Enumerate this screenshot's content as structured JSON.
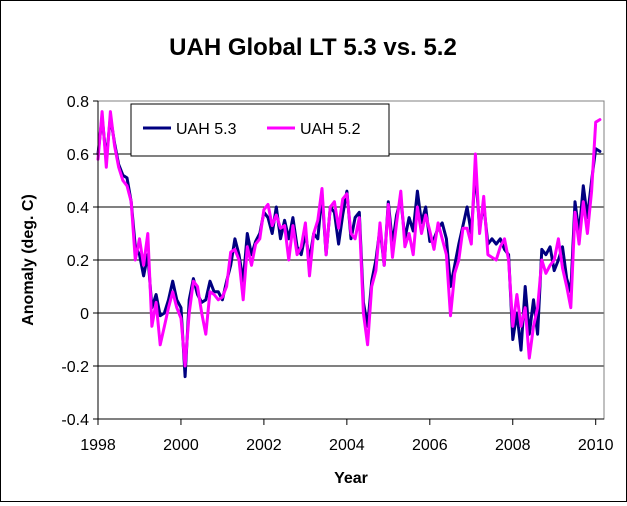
{
  "chart_data": {
    "type": "line",
    "title": "UAH Global LT 5.3 vs. 5.2",
    "xlabel": "Year",
    "ylabel": "Anomaly (deg. C)",
    "xlim": [
      1998,
      2010.2
    ],
    "ylim": [
      -0.4,
      0.8
    ],
    "xticks": [
      1998,
      2000,
      2002,
      2004,
      2006,
      2008,
      2010
    ],
    "yticks": [
      -0.4,
      -0.2,
      0,
      0.2,
      0.4,
      0.6,
      0.8
    ],
    "ytick_labels": [
      "-0.4",
      "-0.2",
      "0",
      "0.2",
      "0.4",
      "0.6",
      "0.8"
    ],
    "grid": "horizontal",
    "legend_position": "top-left",
    "series": [
      {
        "name": "UAH 5.3",
        "color": "#000080",
        "x": [
          1998.0,
          1998.1,
          1998.2,
          1998.3,
          1998.4,
          1998.5,
          1998.6,
          1998.7,
          1998.8,
          1998.9,
          1999.0,
          1999.1,
          1999.2,
          1999.3,
          1999.4,
          1999.5,
          1999.6,
          1999.7,
          1999.8,
          1999.9,
          2000.0,
          2000.1,
          2000.2,
          2000.3,
          2000.4,
          2000.5,
          2000.6,
          2000.7,
          2000.8,
          2000.9,
          2001.0,
          2001.1,
          2001.2,
          2001.3,
          2001.4,
          2001.5,
          2001.6,
          2001.7,
          2001.8,
          2001.9,
          2002.0,
          2002.1,
          2002.2,
          2002.3,
          2002.4,
          2002.5,
          2002.6,
          2002.7,
          2002.8,
          2002.9,
          2003.0,
          2003.1,
          2003.2,
          2003.3,
          2003.4,
          2003.5,
          2003.6,
          2003.7,
          2003.8,
          2003.9,
          2004.0,
          2004.1,
          2004.2,
          2004.3,
          2004.4,
          2004.5,
          2004.6,
          2004.7,
          2004.8,
          2004.9,
          2005.0,
          2005.1,
          2005.2,
          2005.3,
          2005.4,
          2005.5,
          2005.6,
          2005.7,
          2005.8,
          2005.9,
          2006.0,
          2006.1,
          2006.2,
          2006.3,
          2006.4,
          2006.5,
          2006.6,
          2006.7,
          2006.8,
          2006.9,
          2007.0,
          2007.1,
          2007.2,
          2007.3,
          2007.4,
          2007.5,
          2007.6,
          2007.7,
          2007.8,
          2007.9,
          2008.0,
          2008.1,
          2008.2,
          2008.3,
          2008.4,
          2008.5,
          2008.6,
          2008.7,
          2008.8,
          2008.9,
          2009.0,
          2009.1,
          2009.2,
          2009.3,
          2009.4,
          2009.5,
          2009.6,
          2009.7,
          2009.8,
          2009.9,
          2010.0,
          2010.1
        ],
        "values": [
          0.6,
          0.74,
          0.58,
          0.74,
          0.64,
          0.56,
          0.52,
          0.51,
          0.42,
          0.25,
          0.22,
          0.14,
          0.22,
          0.02,
          0.07,
          -0.01,
          0.0,
          0.05,
          0.12,
          0.05,
          0.02,
          -0.24,
          0.05,
          0.13,
          0.07,
          0.04,
          0.05,
          0.12,
          0.08,
          0.08,
          0.05,
          0.12,
          0.18,
          0.28,
          0.22,
          0.12,
          0.3,
          0.22,
          0.27,
          0.3,
          0.38,
          0.36,
          0.3,
          0.4,
          0.28,
          0.35,
          0.28,
          0.36,
          0.25,
          0.22,
          0.3,
          0.2,
          0.3,
          0.28,
          0.45,
          0.22,
          0.4,
          0.38,
          0.26,
          0.37,
          0.46,
          0.28,
          0.36,
          0.38,
          0.04,
          -0.05,
          0.12,
          0.2,
          0.32,
          0.18,
          0.42,
          0.26,
          0.37,
          0.43,
          0.28,
          0.36,
          0.31,
          0.46,
          0.34,
          0.4,
          0.27,
          0.28,
          0.32,
          0.34,
          0.28,
          0.1,
          0.18,
          0.26,
          0.33,
          0.4,
          0.3,
          0.54,
          0.32,
          0.41,
          0.26,
          0.28,
          0.26,
          0.28,
          0.24,
          0.22,
          -0.1,
          0.0,
          -0.14,
          0.1,
          -0.08,
          0.05,
          -0.08,
          0.24,
          0.22,
          0.25,
          0.16,
          0.2,
          0.25,
          0.13,
          0.08,
          0.42,
          0.3,
          0.48,
          0.36,
          0.5,
          0.62,
          0.61
        ]
      },
      {
        "name": "UAH 5.2",
        "color": "#FF00FF",
        "x": [
          1998.0,
          1998.1,
          1998.2,
          1998.3,
          1998.4,
          1998.5,
          1998.6,
          1998.7,
          1998.8,
          1998.9,
          1999.0,
          1999.1,
          1999.2,
          1999.3,
          1999.4,
          1999.5,
          1999.6,
          1999.7,
          1999.8,
          1999.9,
          2000.0,
          2000.1,
          2000.2,
          2000.3,
          2000.4,
          2000.5,
          2000.6,
          2000.7,
          2000.8,
          2000.9,
          2001.0,
          2001.1,
          2001.2,
          2001.3,
          2001.4,
          2001.5,
          2001.6,
          2001.7,
          2001.8,
          2001.9,
          2002.0,
          2002.1,
          2002.2,
          2002.3,
          2002.4,
          2002.5,
          2002.6,
          2002.7,
          2002.8,
          2002.9,
          2003.0,
          2003.1,
          2003.2,
          2003.3,
          2003.4,
          2003.5,
          2003.6,
          2003.7,
          2003.8,
          2003.9,
          2004.0,
          2004.1,
          2004.2,
          2004.3,
          2004.4,
          2004.5,
          2004.6,
          2004.7,
          2004.8,
          2004.9,
          2005.0,
          2005.1,
          2005.2,
          2005.3,
          2005.4,
          2005.5,
          2005.6,
          2005.7,
          2005.8,
          2005.9,
          2006.0,
          2006.1,
          2006.2,
          2006.3,
          2006.4,
          2006.5,
          2006.6,
          2006.7,
          2006.8,
          2006.9,
          2007.0,
          2007.1,
          2007.2,
          2007.3,
          2007.4,
          2007.5,
          2007.6,
          2007.7,
          2007.8,
          2007.9,
          2008.0,
          2008.1,
          2008.2,
          2008.3,
          2008.4,
          2008.5,
          2008.6,
          2008.7,
          2008.8,
          2008.9,
          2009.0,
          2009.1,
          2009.2,
          2009.3,
          2009.4,
          2009.5,
          2009.6,
          2009.7,
          2009.8,
          2009.9,
          2010.0,
          2010.1
        ],
        "values": [
          0.58,
          0.76,
          0.55,
          0.76,
          0.63,
          0.55,
          0.5,
          0.48,
          0.42,
          0.2,
          0.28,
          0.18,
          0.3,
          -0.05,
          0.04,
          -0.12,
          -0.05,
          0.02,
          0.08,
          0.02,
          -0.02,
          -0.2,
          0.0,
          0.12,
          0.1,
          0.0,
          -0.08,
          0.08,
          0.07,
          0.05,
          0.06,
          0.1,
          0.23,
          0.24,
          0.2,
          0.05,
          0.25,
          0.18,
          0.26,
          0.28,
          0.39,
          0.41,
          0.33,
          0.37,
          0.32,
          0.33,
          0.2,
          0.33,
          0.22,
          0.25,
          0.34,
          0.14,
          0.3,
          0.35,
          0.47,
          0.22,
          0.4,
          0.42,
          0.32,
          0.43,
          0.45,
          0.3,
          0.28,
          0.36,
          0.0,
          -0.12,
          0.1,
          0.16,
          0.34,
          0.18,
          0.41,
          0.21,
          0.34,
          0.46,
          0.25,
          0.3,
          0.22,
          0.4,
          0.3,
          0.37,
          0.31,
          0.24,
          0.34,
          0.28,
          0.22,
          -0.01,
          0.15,
          0.2,
          0.32,
          0.32,
          0.26,
          0.6,
          0.3,
          0.44,
          0.22,
          0.21,
          0.2,
          0.25,
          0.28,
          0.2,
          -0.05,
          0.07,
          -0.05,
          0.02,
          -0.17,
          -0.05,
          0.02,
          0.2,
          0.15,
          0.18,
          0.2,
          0.28,
          0.17,
          0.1,
          0.02,
          0.38,
          0.26,
          0.42,
          0.3,
          0.46,
          0.72,
          0.73
        ]
      }
    ]
  }
}
